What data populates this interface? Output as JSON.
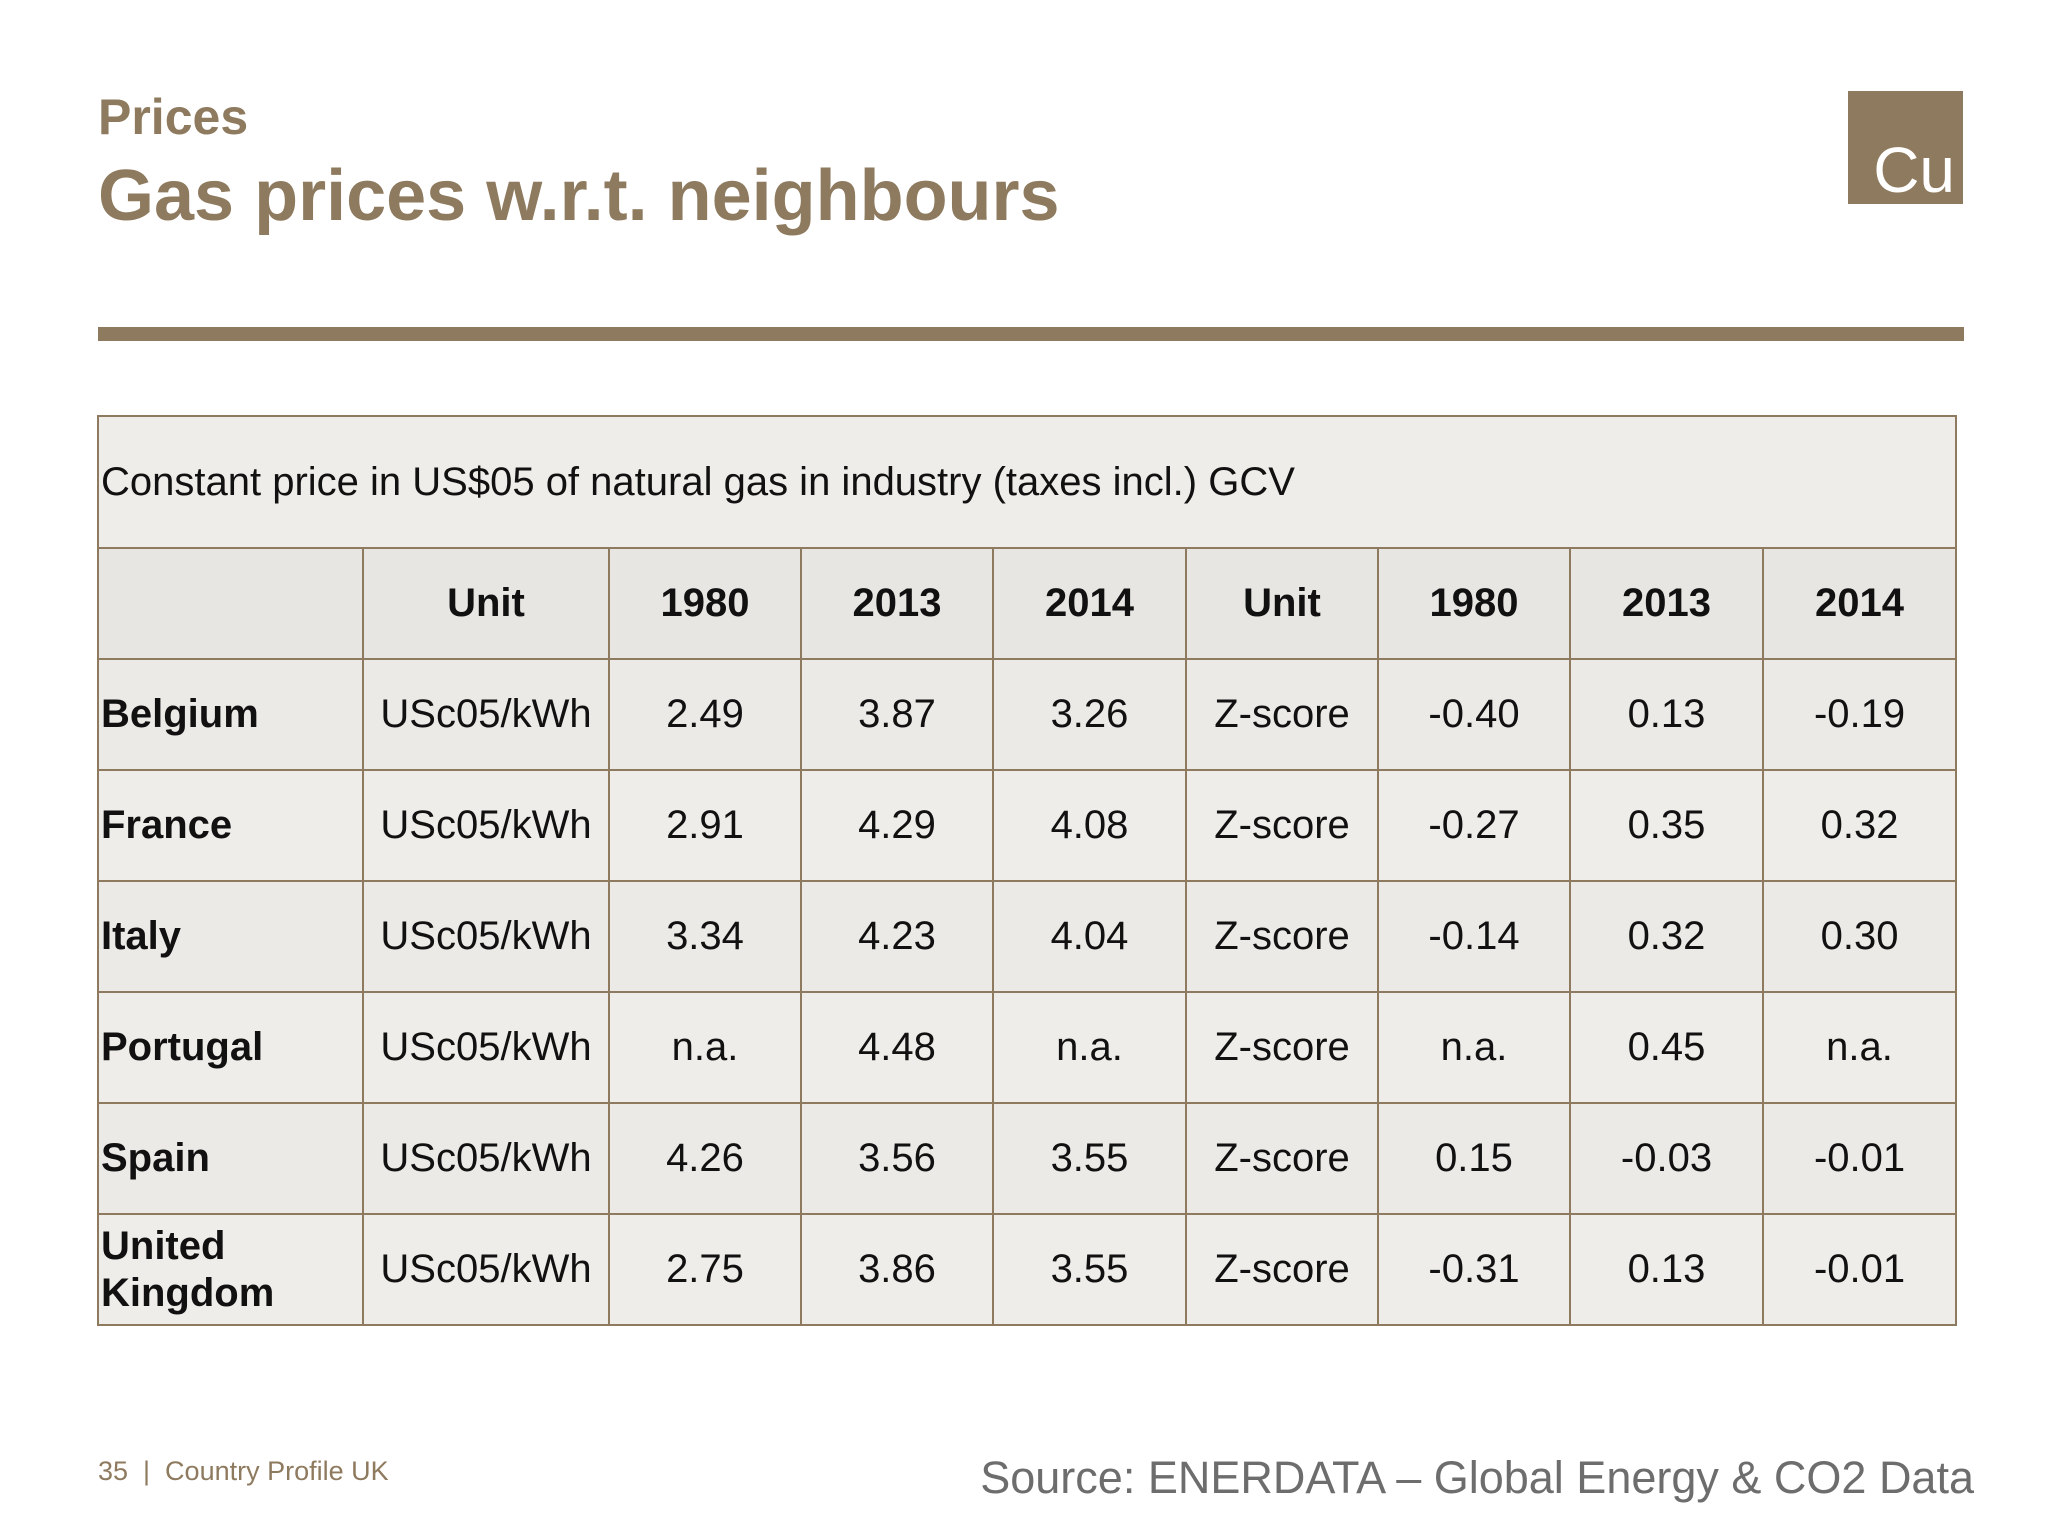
{
  "header": {
    "section": "Prices",
    "title": "Gas prices w.r.t. neighbours",
    "logo_text": "Cu"
  },
  "table": {
    "caption": "Constant price in US$05 of natural gas in industry (taxes incl.) GCV",
    "columns": [
      "",
      "Unit",
      "1980",
      "2013",
      "2014",
      "Unit",
      "1980",
      "2013",
      "2014"
    ],
    "rows": [
      [
        "Belgium",
        "USc05/kWh",
        "2.49",
        "3.87",
        "3.26",
        "Z-score",
        "-0.40",
        "0.13",
        "-0.19"
      ],
      [
        "France",
        "USc05/kWh",
        "2.91",
        "4.29",
        "4.08",
        "Z-score",
        "-0.27",
        "0.35",
        "0.32"
      ],
      [
        "Italy",
        "USc05/kWh",
        "3.34",
        "4.23",
        "4.04",
        "Z-score",
        "-0.14",
        "0.32",
        "0.30"
      ],
      [
        "Portugal",
        "USc05/kWh",
        "n.a.",
        "4.48",
        "n.a.",
        "Z-score",
        "n.a.",
        "0.45",
        "n.a."
      ],
      [
        "Spain",
        "USc05/kWh",
        "4.26",
        "3.56",
        "3.55",
        "Z-score",
        "0.15",
        "-0.03",
        "-0.01"
      ],
      [
        "United Kingdom",
        "USc05/kWh",
        "2.75",
        "3.86",
        "3.55",
        "Z-score",
        "-0.31",
        "0.13",
        "-0.01"
      ]
    ]
  },
  "footer": {
    "page_info": "35  |  Country Profile UK",
    "source": "Source: ENERDATA – Global Energy & CO2 Data"
  },
  "colors": {
    "brand": "#8e7a5e",
    "table_border": "#8e7a5e",
    "cell_background": "#eceae7"
  }
}
